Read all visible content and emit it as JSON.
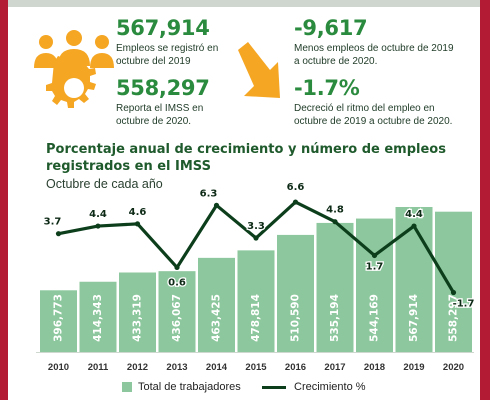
{
  "stats": {
    "total_value": "567,914",
    "total_label_1": "Empleos se registró en",
    "total_label_2": "octubre del 2019",
    "imss_value": "558,297",
    "imss_label_1": "Reporta el IMSS en",
    "imss_label_2": "octubre de 2020.",
    "diff_value": "-9,617",
    "diff_label_1": "Menos empleos de octubre de 2019",
    "diff_label_2": "a octubre de 2020.",
    "pct_value": "-1.7%",
    "pct_label_1": "Decreció el ritmo del empleo en",
    "pct_label_2": "octubre de 2019 a octubre de 2020."
  },
  "icons": [
    "people-gear-icon",
    "down-right-arrow-icon"
  ],
  "colors": {
    "accent_orange": "#f5a623",
    "bar_fill": "#8cc79d",
    "line": "#0c3e1c",
    "stat_green": "#2a8a3e",
    "frame_red": "#b31b34"
  },
  "chart_data": {
    "type": "bar",
    "title": "Porcentaje anual de crecimiento y número de empleos registrados en el IMSS",
    "subtitle": "Octubre de cada año",
    "categories": [
      "2010",
      "2011",
      "2012",
      "2013",
      "2014",
      "2015",
      "2016",
      "2017",
      "2018",
      "2019",
      "2020"
    ],
    "series": [
      {
        "name": "Total de trabajadores",
        "type": "bar",
        "values": [
          396773,
          414343,
          433319,
          436067,
          463425,
          478814,
          510590,
          535194,
          544169,
          567914,
          558297
        ],
        "labels": [
          "396,773",
          "414,343",
          "433,319",
          "436,067",
          "463,425",
          "478,814",
          "510,590",
          "535,194",
          "544,169",
          "567,914",
          "558,297"
        ]
      },
      {
        "name": "Crecimiento %",
        "type": "line",
        "values": [
          3.7,
          4.4,
          4.6,
          0.6,
          6.3,
          3.3,
          6.6,
          4.8,
          1.7,
          4.4,
          -1.7
        ],
        "labels": [
          "3.7",
          "4.4",
          "4.6",
          "0.6",
          "6.3",
          "3.3",
          "6.6",
          "4.8",
          "1.7",
          "4.4",
          "-1.7"
        ]
      }
    ],
    "legend": {
      "position": "bottom",
      "items": [
        "Total de trabajadores",
        "Crecimiento %"
      ]
    },
    "grid": false
  }
}
